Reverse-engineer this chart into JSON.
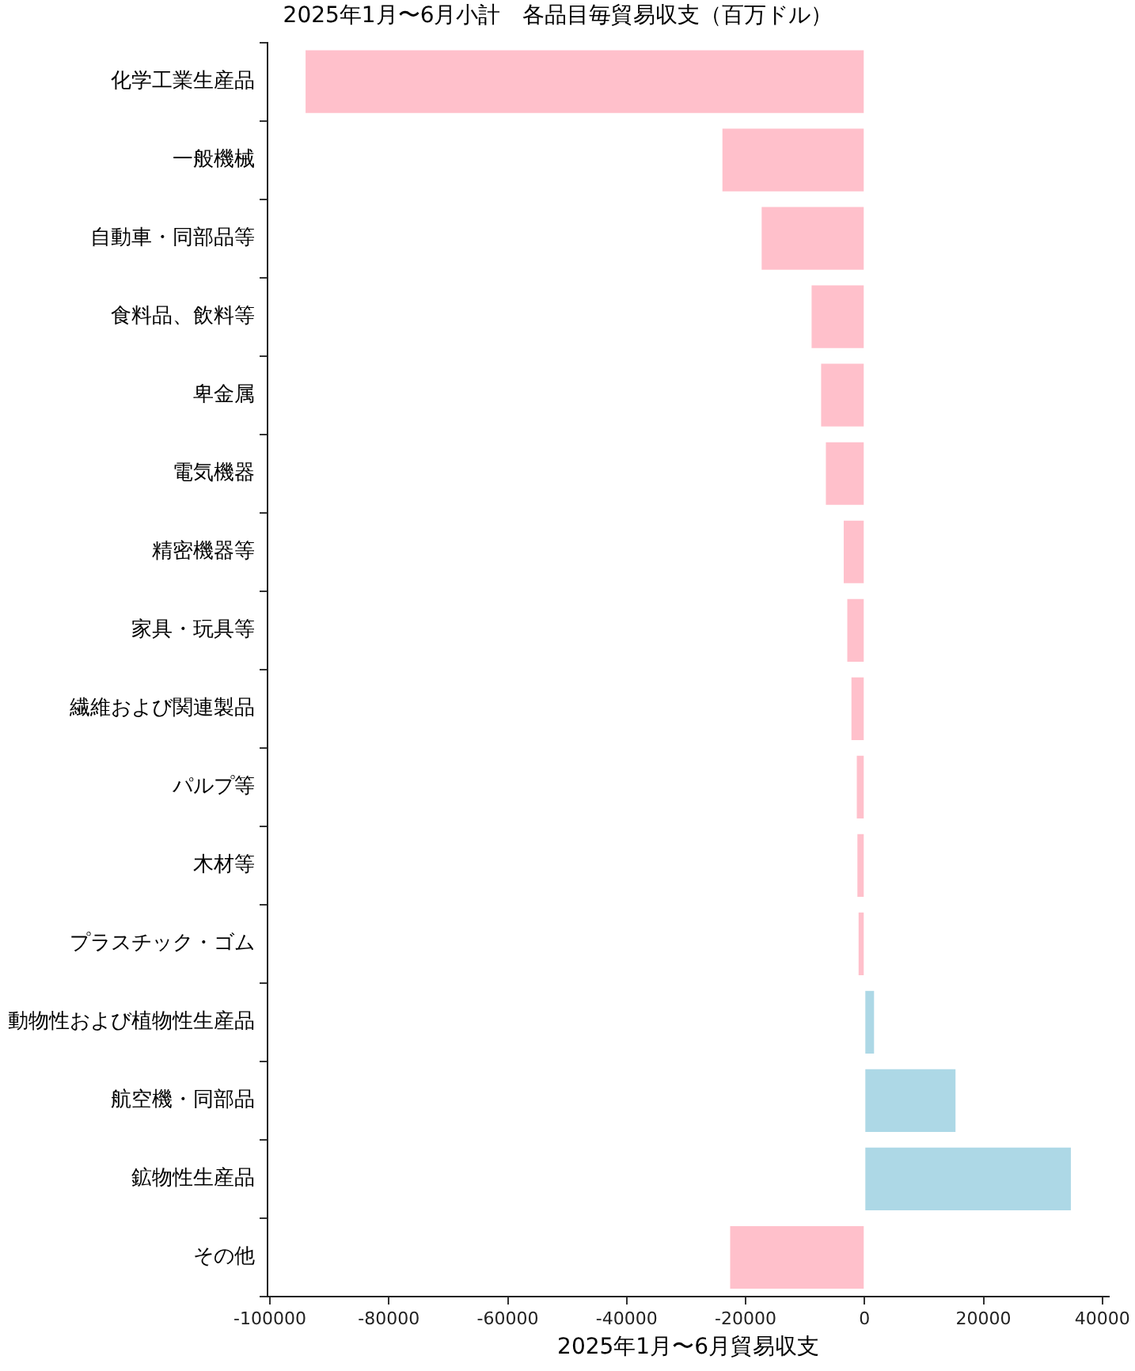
{
  "chart_data": {
    "type": "bar",
    "orientation": "horizontal",
    "title": "2025年1月〜6月小計　各品目毎貿易収支（百万ドル）",
    "xlabel": "2025年1月〜6月貿易収支",
    "categories": [
      "化学工業生産品",
      "一般機械",
      "自動車・同部品等",
      "食料品、飲料等",
      "卑金属",
      "電気機器",
      "精密機器等",
      "家具・玩具等",
      "繊維および関連製品",
      "パルプ等",
      "木材等",
      "プラスチック・ゴム",
      "動物性および植物性生産品",
      "航空機・同部品",
      "鉱物性生産品",
      "その他"
    ],
    "values": [
      -94000,
      -23900,
      -17300,
      -8900,
      -7300,
      -6500,
      -3500,
      -2900,
      -2200,
      -1300,
      -1200,
      -1000,
      1600,
      15300,
      34700,
      -22600
    ],
    "colors": [
      "#ffc0cb",
      "#ffc0cb",
      "#ffc0cb",
      "#ffc0cb",
      "#ffc0cb",
      "#ffc0cb",
      "#ffc0cb",
      "#ffc0cb",
      "#ffc0cb",
      "#ffc0cb",
      "#ffc0cb",
      "#ffc0cb",
      "#add8e6",
      "#add8e6",
      "#add8e6",
      "#ffc0cb"
    ],
    "xlim": [
      -100400,
      41100
    ],
    "xticks": [
      -100000,
      -80000,
      -60000,
      -40000,
      -20000,
      0,
      20000,
      40000
    ],
    "grid": false,
    "legend": false
  }
}
